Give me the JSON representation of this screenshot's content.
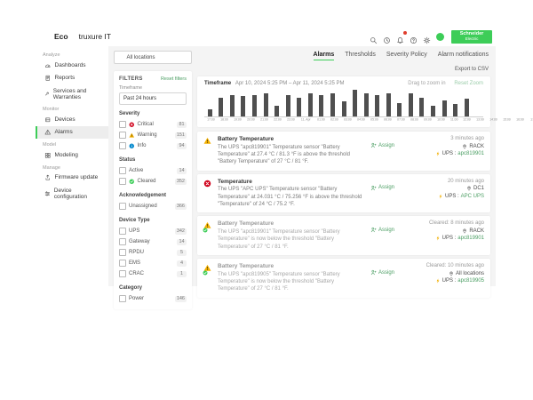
{
  "topbar": {
    "logo_bold": "Eco",
    "logo_rest": "truxure IT",
    "icons": [
      {
        "name": "search"
      },
      {
        "name": "history"
      },
      {
        "name": "notifications",
        "badge": true
      },
      {
        "name": "help"
      },
      {
        "name": "settings"
      }
    ],
    "brand_line1": "Schneider",
    "brand_line2": "Electric"
  },
  "sidebar": {
    "sections": [
      {
        "label": "Analyze",
        "items": [
          {
            "label": "Dashboards",
            "icon": "dashboards"
          },
          {
            "label": "Reports",
            "icon": "reports"
          },
          {
            "label": "Services and Warranties",
            "icon": "services"
          }
        ]
      },
      {
        "label": "Monitor",
        "items": [
          {
            "label": "Devices",
            "icon": "devices"
          },
          {
            "label": "Alarms",
            "icon": "alarms",
            "active": true
          }
        ]
      },
      {
        "label": "Model",
        "items": [
          {
            "label": "Modeling",
            "icon": "modeling"
          }
        ]
      },
      {
        "label": "Manage",
        "items": [
          {
            "label": "Firmware update",
            "icon": "firmware"
          },
          {
            "label": "Device configuration",
            "icon": "config"
          }
        ]
      }
    ]
  },
  "filters": {
    "location_selector": "All locations",
    "title": "FILTERS",
    "reset_label": "Reset filters",
    "timeframe_label": "Timeframe",
    "timeframe_value": "Past 24 hours",
    "groups": [
      {
        "label": "Severity",
        "options": [
          {
            "label": "Critical",
            "count": "81",
            "icon": "critical"
          },
          {
            "label": "Warning",
            "count": "151",
            "icon": "warning"
          },
          {
            "label": "Info",
            "count": "94",
            "icon": "info"
          }
        ]
      },
      {
        "label": "Status",
        "options": [
          {
            "label": "Active",
            "count": "14"
          },
          {
            "label": "Cleared",
            "count": "352",
            "icon": "check"
          }
        ]
      },
      {
        "label": "Acknowledgement",
        "options": [
          {
            "label": "Unassigned",
            "count": "366"
          }
        ]
      },
      {
        "label": "Device Type",
        "options": [
          {
            "label": "UPS",
            "count": "342"
          },
          {
            "label": "Gateway",
            "count": "14"
          },
          {
            "label": "RPDU",
            "count": "5"
          },
          {
            "label": "EMS",
            "count": "4"
          },
          {
            "label": "CRAC",
            "count": "1"
          }
        ]
      },
      {
        "label": "Category",
        "options": [
          {
            "label": "Power",
            "count": "146"
          }
        ]
      }
    ]
  },
  "tabs": [
    {
      "label": "Alarms",
      "active": true
    },
    {
      "label": "Thresholds",
      "active": false
    },
    {
      "label": "Severity Policy",
      "active": false
    },
    {
      "label": "Alarm notifications",
      "active": false
    }
  ],
  "toolbar": {
    "export_label": "Export to CSV"
  },
  "chart_card": {
    "timeframe_label": "Timeframe",
    "timeframe_value": "Apr 10, 2024 5:25 PM – Apr 11, 2024 5:25 PM",
    "drag_hint": "Drag to zoom in",
    "reset_zoom": "Reset Zoom"
  },
  "chart_data": {
    "type": "bar",
    "title": "",
    "x": [
      "17:00",
      "18:00",
      "19:00",
      "20:00",
      "21:00",
      "22:00",
      "23:00",
      "11. Apr",
      "01:00",
      "02:00",
      "03:00",
      "04:00",
      "05:00",
      "06:00",
      "07:00",
      "08:00",
      "09:00",
      "10:00",
      "11:00",
      "12:00",
      "13:00",
      "14:00",
      "15:00",
      "16:00",
      "17:00"
    ],
    "values": [
      5,
      14,
      16,
      15,
      16,
      17,
      8,
      16,
      14,
      17,
      16,
      17,
      11,
      20,
      17,
      16,
      17,
      10,
      17,
      14,
      8,
      12,
      9,
      13,
      0
    ],
    "xlabel": "",
    "ylabel": "",
    "ylim": [
      0,
      20
    ],
    "grid": false,
    "legend": false,
    "bar_color": "#4f4f4f"
  },
  "alarm_list": {
    "assign_label": "Assign",
    "items": [
      {
        "severity": "warning",
        "cleared": false,
        "title": "Battery Temperature",
        "description": "The UPS \"apc819901\" Temperature sensor \"Battery Temperature\" at 27.4 °C / 81.3 °F is above the threshold \"Battery Temperature\" of 27 °C / 81 °F.",
        "time": "3 minutes ago",
        "location": "RACK",
        "device_type": "UPS",
        "device_name": "apc819901"
      },
      {
        "severity": "critical",
        "cleared": false,
        "title": "Temperature",
        "description": "The UPS \"APC UPS\" Temperature sensor \"Battery Temperature\" at 24.031 °C / 75.256 °F is above the threshold \"Temperature\" of 24 °C / 75.2 °F.",
        "time": "20 minutes ago",
        "location": "DC1",
        "device_type": "UPS",
        "device_name": "APC UPS"
      },
      {
        "severity": "warning",
        "cleared": true,
        "title": "Battery Temperature",
        "description": "The UPS \"apc819901\" Temperature sensor \"Battery Temperature\" is now below the threshold \"Battery Temperature\" of 27 °C / 81 °F.",
        "time": "Cleared: 8 minutes ago",
        "location": "RACK",
        "device_type": "UPS",
        "device_name": "apc819901"
      },
      {
        "severity": "warning",
        "cleared": true,
        "title": "Battery Temperature",
        "description": "The UPS \"apc819905\" Temperature sensor \"Battery Temperature\" is now below the threshold \"Battery Temperature\" of 27 °C / 81 °F.",
        "time": "Cleared: 10 minutes ago",
        "location": "All locations",
        "device_type": "UPS",
        "device_name": "apc819905"
      }
    ]
  },
  "colors": {
    "accent": "#3dcd58",
    "link_green": "#4b9e63",
    "critical": "#d0021b",
    "warning": "#f2af00",
    "info": "#0087cd",
    "bar": "#4f4f4f"
  }
}
